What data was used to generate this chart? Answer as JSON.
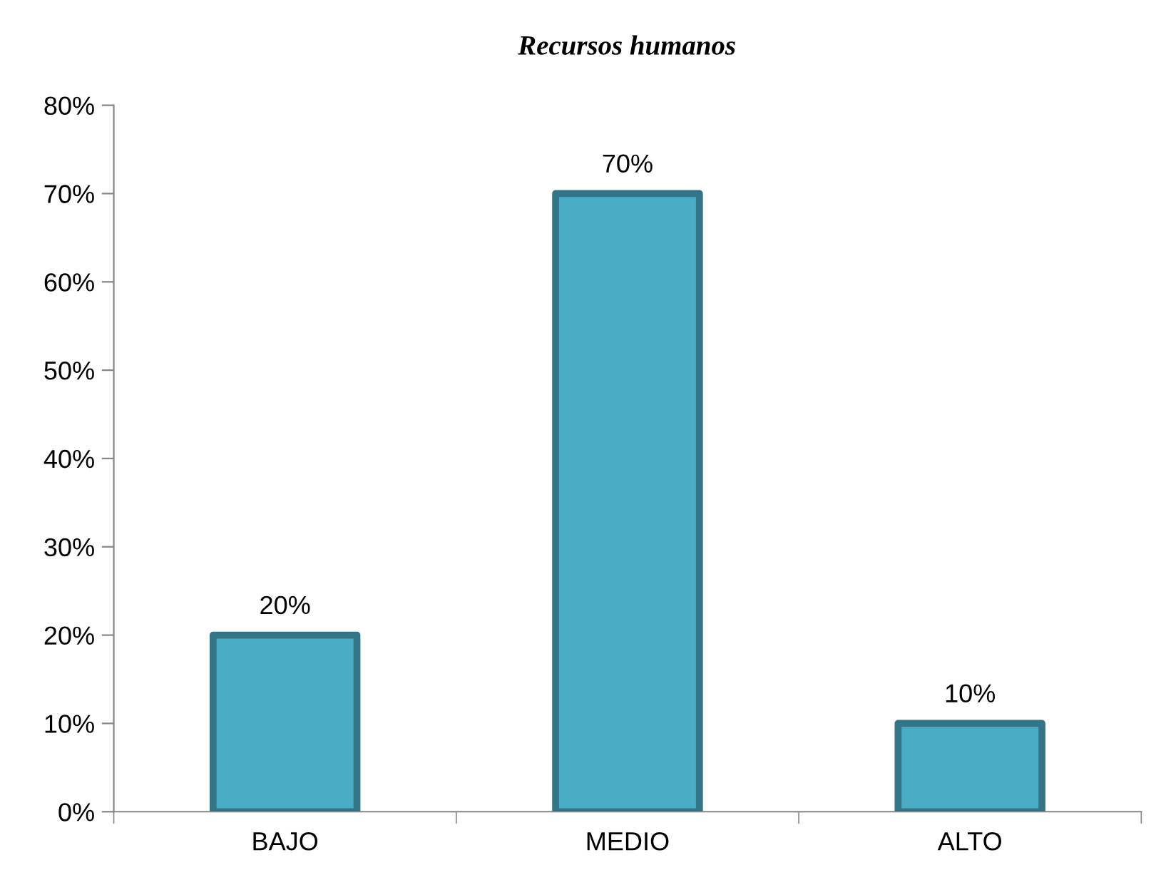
{
  "chart_data": {
    "type": "bar",
    "title": "Recursos humanos",
    "categories": [
      "BAJO",
      "MEDIO",
      "ALTO"
    ],
    "values": [
      20,
      70,
      10
    ],
    "value_labels": [
      "20%",
      "70%",
      "10%"
    ],
    "color": "#4bacc6",
    "ylim": [
      0,
      80
    ],
    "yticks": [
      {
        "value": 0,
        "label": "0%"
      },
      {
        "value": 10,
        "label": "10%"
      },
      {
        "value": 20,
        "label": "20%"
      },
      {
        "value": 30,
        "label": "30%"
      },
      {
        "value": 40,
        "label": "40%"
      },
      {
        "value": 50,
        "label": "50%"
      },
      {
        "value": 60,
        "label": "60%"
      },
      {
        "value": 70,
        "label": "70%"
      },
      {
        "value": 80,
        "label": "80%"
      }
    ],
    "grid": false,
    "legend": false
  }
}
